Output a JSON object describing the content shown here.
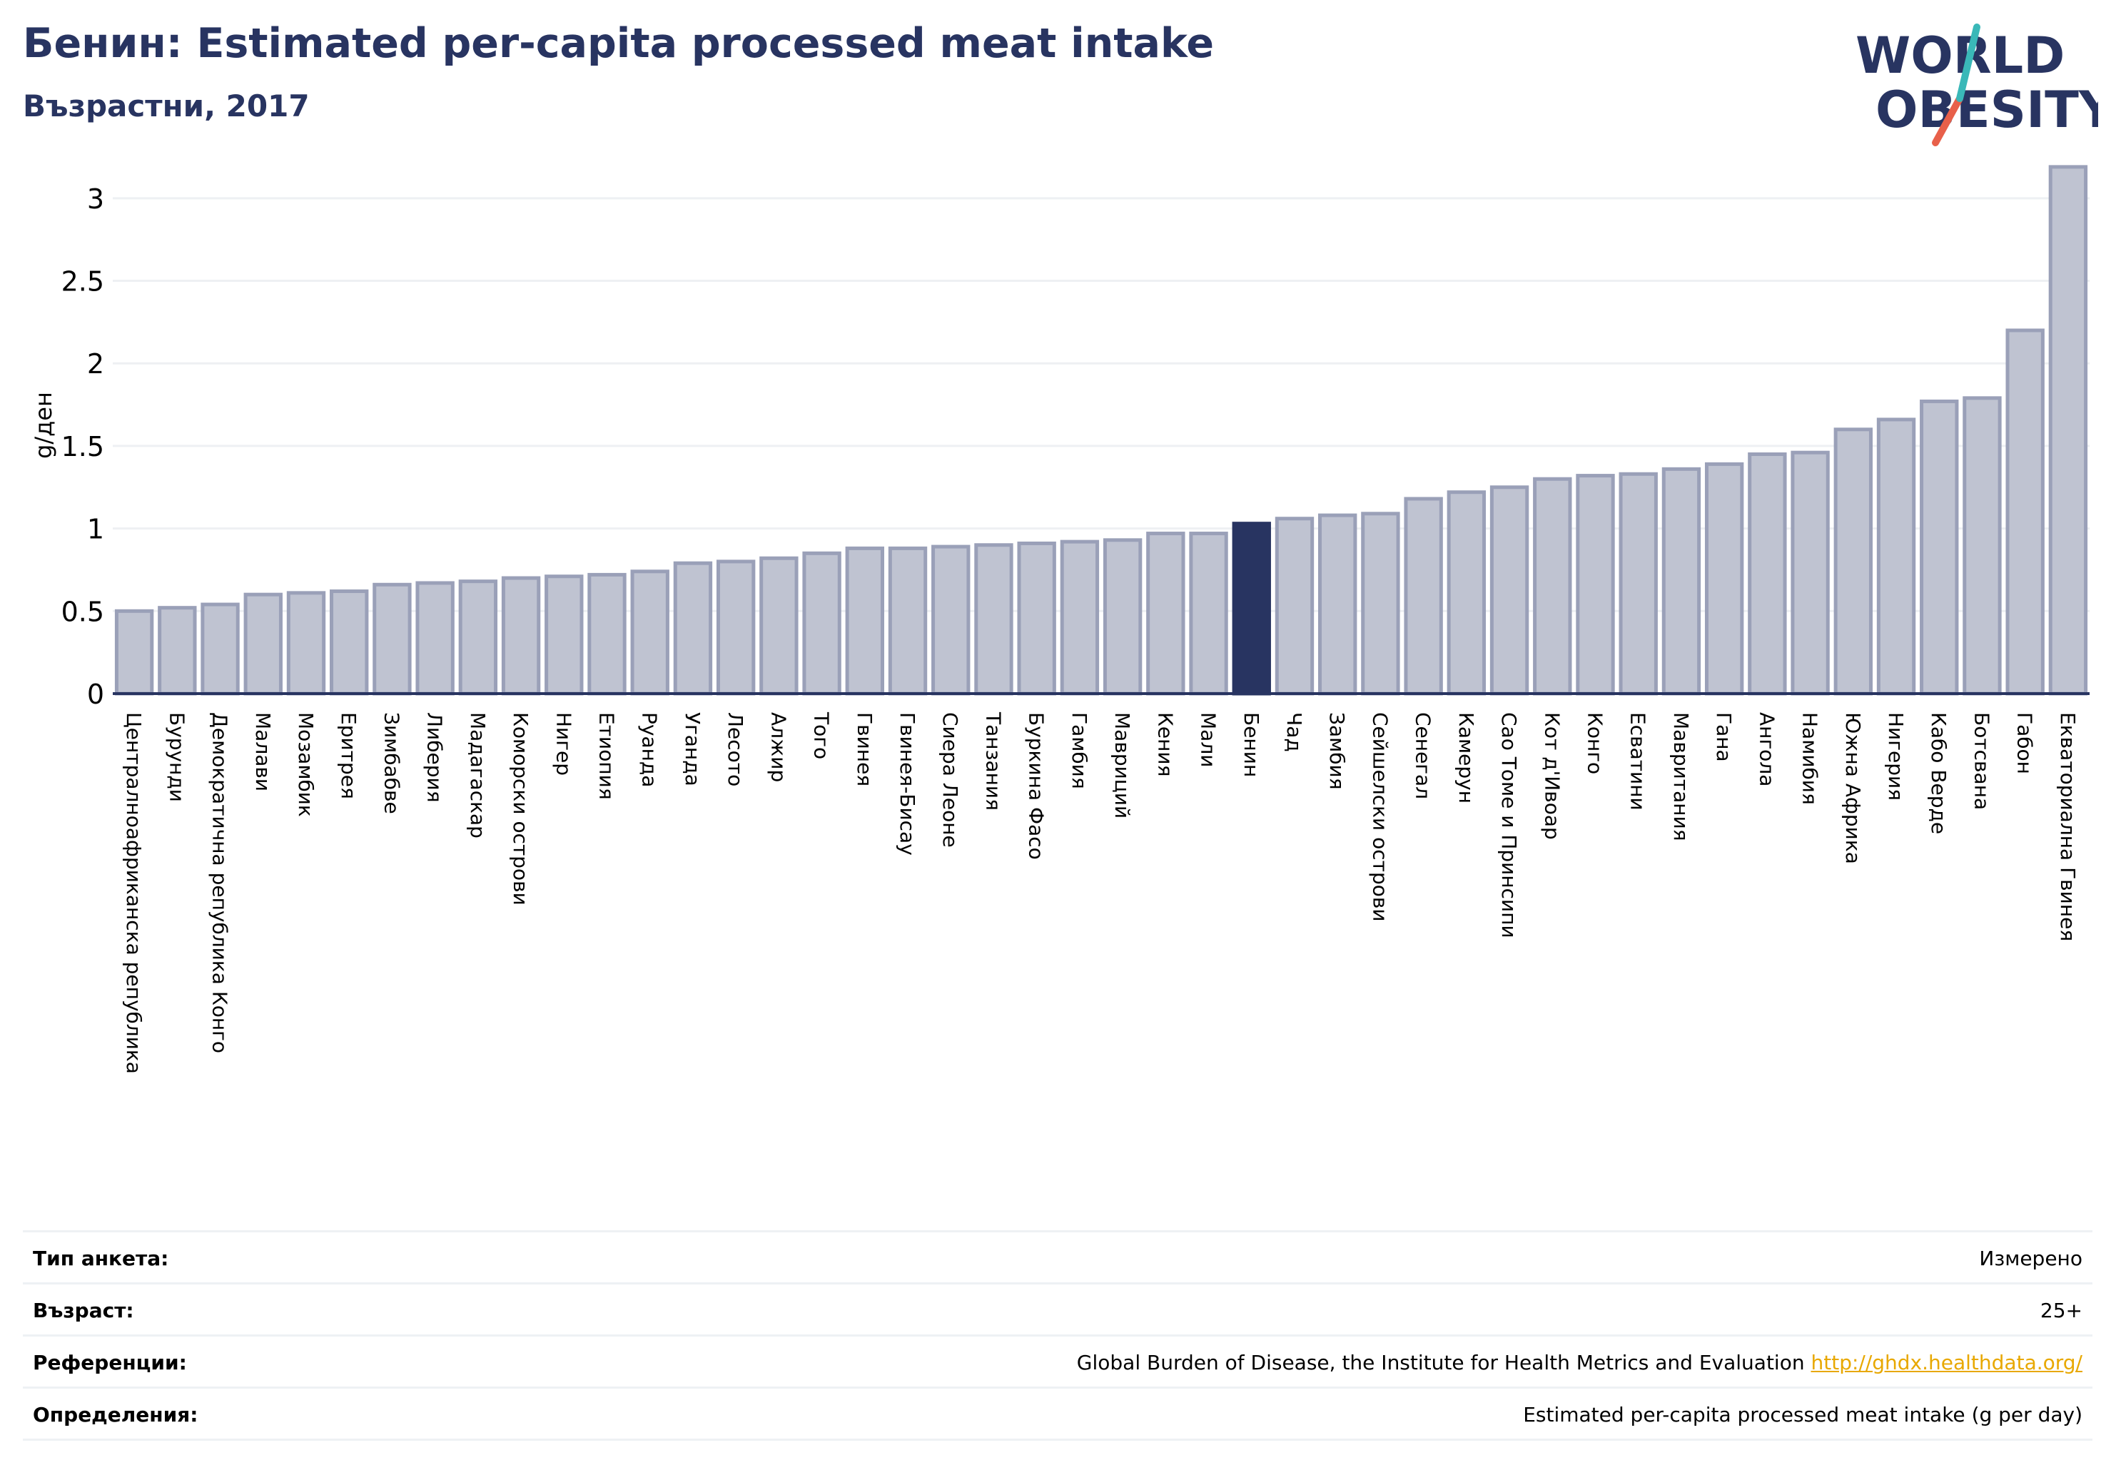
{
  "header": {
    "title": "Бенин: Estimated per-capita processed meat intake",
    "subtitle": "Възрастни, 2017"
  },
  "logo": {
    "line1": "WORLD",
    "line2": "OBESITY"
  },
  "chart_data": {
    "type": "bar",
    "ylabel": "g/ден",
    "ylim": [
      0,
      3.25
    ],
    "yticks": [
      0,
      0.5,
      1,
      1.5,
      2,
      2.5,
      3
    ],
    "ytick_labels": [
      "0",
      "0.5",
      "1",
      "1.5",
      "2",
      "2.5",
      "3"
    ],
    "grid": true,
    "highlight": "Бенин",
    "colors": {
      "bar": "#bfc3d1",
      "bar_edge": "#9aa0b8",
      "highlight": "#283461",
      "grid": "#eef0f3",
      "axis": "#283461"
    },
    "categories": [
      "Централноафриканска република",
      "Бурунди",
      "Демократична република Конго",
      "Малави",
      "Мозамбик",
      "Еритрея",
      "Зимбабве",
      "Либерия",
      "Мадагаскар",
      "Коморски острови",
      "Нигер",
      "Етиопия",
      "Руанда",
      "Уганда",
      "Лесото",
      "Алжир",
      "Того",
      "Гвинея",
      "Гвинея-Бисау",
      "Сиера Леоне",
      "Танзания",
      "Буркина Фасо",
      "Гамбия",
      "Мавриций",
      "Кения",
      "Мали",
      "Бенин",
      "Чад",
      "Замбия",
      "Сейшелски острови",
      "Сенегал",
      "Камерун",
      "Сао Томе и Принсипи",
      "Кот д'Ивоар",
      "Конго",
      "Есватини",
      "Мавритания",
      "Гана",
      "Ангола",
      "Намибия",
      "Южна Африка",
      "Нигерия",
      "Кабо Верде",
      "Ботсвана",
      "Габон",
      "Екваториална Гвинея"
    ],
    "values": [
      0.5,
      0.52,
      0.54,
      0.6,
      0.61,
      0.62,
      0.66,
      0.67,
      0.68,
      0.7,
      0.71,
      0.72,
      0.74,
      0.79,
      0.8,
      0.82,
      0.85,
      0.88,
      0.88,
      0.89,
      0.9,
      0.91,
      0.92,
      0.93,
      0.97,
      0.97,
      1.03,
      1.06,
      1.08,
      1.09,
      1.18,
      1.22,
      1.25,
      1.3,
      1.32,
      1.33,
      1.36,
      1.39,
      1.45,
      1.46,
      1.6,
      1.66,
      1.77,
      1.79,
      2.2,
      3.19
    ]
  },
  "info": {
    "rows": [
      {
        "label": "Тип анкета:",
        "value": "Измерено",
        "link": ""
      },
      {
        "label": "Възраст:",
        "value": "25+",
        "link": ""
      },
      {
        "label": "Референции:",
        "value": "Global Burden of Disease, the Institute for Health Metrics and Evaluation ",
        "link": "http://ghdx.healthdata.org/"
      },
      {
        "label": "Определения:",
        "value": "Estimated per-capita processed meat intake (g per day)",
        "link": ""
      }
    ]
  }
}
